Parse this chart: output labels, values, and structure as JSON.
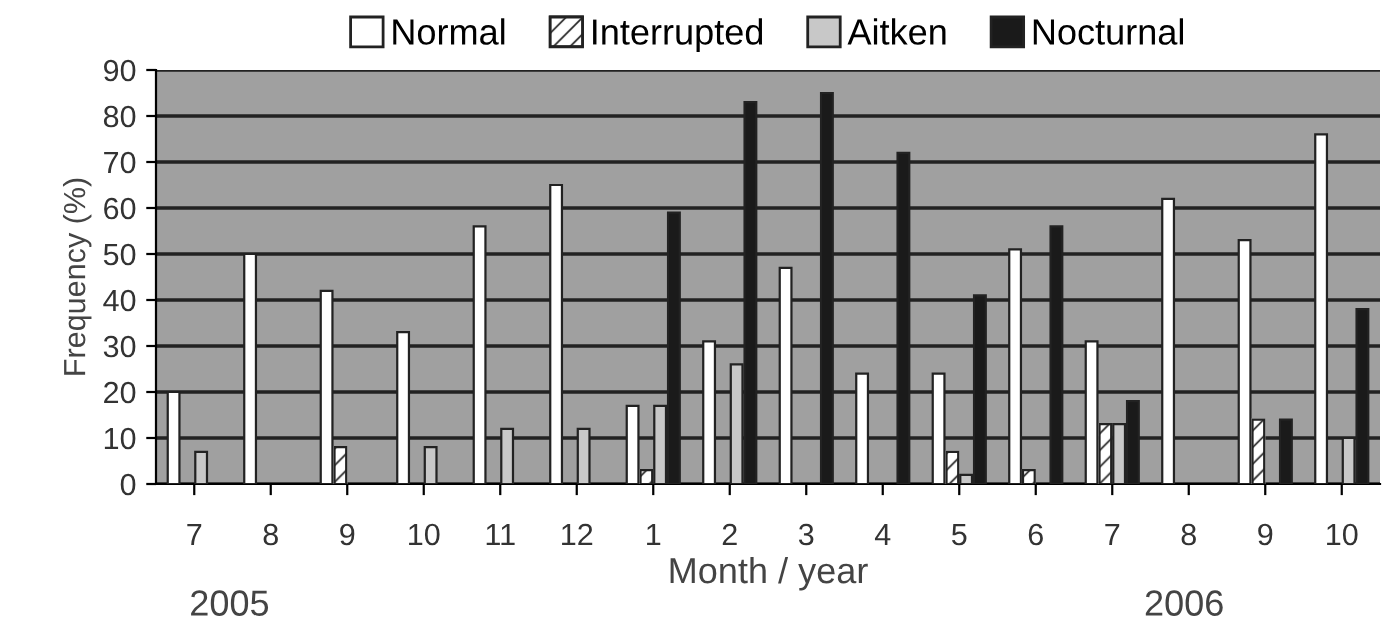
{
  "chart_data": {
    "type": "bar",
    "ylabel": "Frequency (%)",
    "xlabel": "Month / year",
    "annotations": [
      "2005",
      "2006"
    ],
    "categories": [
      "7",
      "8",
      "9",
      "10",
      "11",
      "12",
      "1",
      "2",
      "3",
      "4",
      "5",
      "6",
      "7",
      "8",
      "9",
      "10"
    ],
    "series": [
      {
        "name": "Normal",
        "color": "#ffffff",
        "values": [
          20,
          50,
          42,
          33,
          56,
          65,
          17,
          31,
          47,
          24,
          24,
          51,
          31,
          62,
          53,
          76
        ]
      },
      {
        "name": "Interrupted",
        "color": "#ffffff",
        "values": [
          null,
          null,
          8,
          null,
          null,
          null,
          3,
          null,
          null,
          null,
          7,
          3,
          13,
          null,
          14,
          null
        ]
      },
      {
        "name": "Aitken",
        "color": "#c8c8c8",
        "values": [
          7,
          null,
          null,
          8,
          12,
          12,
          17,
          26,
          null,
          null,
          2,
          null,
          13,
          null,
          null,
          10
        ]
      },
      {
        "name": "Nocturnal",
        "color": "#1a1a1a",
        "values": [
          null,
          null,
          null,
          null,
          null,
          null,
          59,
          83,
          85,
          72,
          41,
          56,
          18,
          null,
          14,
          38
        ]
      }
    ],
    "ylim": [
      0,
      90
    ],
    "yticks": [
      0,
      10,
      20,
      30,
      40,
      50,
      60,
      70,
      80,
      90
    ],
    "grid": "y",
    "legend": "top"
  }
}
